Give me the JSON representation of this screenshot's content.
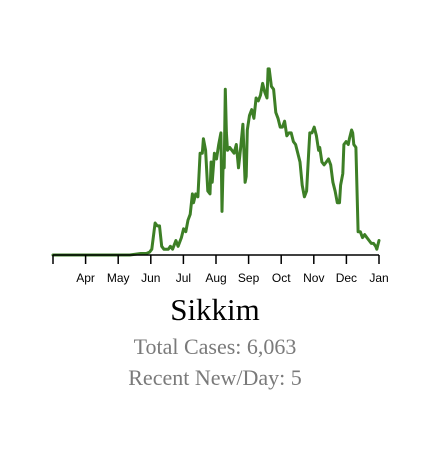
{
  "chart_data": {
    "type": "line",
    "title": "Sikkim",
    "x_tick_labels": [
      "Apr",
      "May",
      "Jun",
      "Jul",
      "Aug",
      "Sep",
      "Oct",
      "Nov",
      "Dec",
      "Jan"
    ],
    "x_range": [
      "2020-03",
      "2021-01"
    ],
    "y_range": [
      0,
      65
    ],
    "grid": false,
    "legend": "none",
    "line_color": "#3d7f26",
    "axis_color": "#000000",
    "series": [
      {
        "values": [
          [
            0,
            0
          ],
          [
            60,
            0
          ],
          [
            70,
            0
          ],
          [
            80,
            0.5
          ],
          [
            85,
            0.5
          ],
          [
            88,
            1
          ],
          [
            90,
            2
          ],
          [
            93,
            11
          ],
          [
            95,
            10
          ],
          [
            97,
            10
          ],
          [
            99,
            3
          ],
          [
            101,
            2
          ],
          [
            103,
            2
          ],
          [
            105,
            2
          ],
          [
            107,
            3
          ],
          [
            109,
            2
          ],
          [
            112,
            5
          ],
          [
            114,
            3
          ],
          [
            117,
            6
          ],
          [
            119,
            9
          ],
          [
            121,
            8
          ],
          [
            123,
            12
          ],
          [
            125,
            14
          ],
          [
            127,
            21
          ],
          [
            128,
            18
          ],
          [
            130,
            21
          ],
          [
            132,
            20
          ],
          [
            134,
            35
          ],
          [
            136,
            35
          ],
          [
            137,
            40
          ],
          [
            139,
            36
          ],
          [
            141,
            22
          ],
          [
            143,
            21
          ],
          [
            144,
            32
          ],
          [
            145,
            25
          ],
          [
            147,
            35
          ],
          [
            149,
            33
          ],
          [
            151,
            38
          ],
          [
            153,
            42
          ],
          [
            154,
            15
          ],
          [
            155,
            31
          ],
          [
            156,
            30
          ],
          [
            157,
            57
          ],
          [
            158,
            42
          ],
          [
            159,
            36
          ],
          [
            161,
            37
          ],
          [
            163,
            36
          ],
          [
            165,
            35
          ],
          [
            167,
            38
          ],
          [
            169,
            30
          ],
          [
            171,
            37
          ],
          [
            173,
            45
          ],
          [
            175,
            25
          ],
          [
            176,
            27
          ],
          [
            177,
            43
          ],
          [
            179,
            48
          ],
          [
            181,
            50
          ],
          [
            183,
            47
          ],
          [
            185,
            54
          ],
          [
            187,
            53
          ],
          [
            189,
            55
          ],
          [
            191,
            59
          ],
          [
            193,
            56
          ],
          [
            195,
            54
          ],
          [
            196,
            64
          ],
          [
            197,
            64
          ],
          [
            199,
            58
          ],
          [
            201,
            57
          ],
          [
            203,
            49
          ],
          [
            205,
            47
          ],
          [
            207,
            44
          ],
          [
            209,
            44
          ],
          [
            211,
            46
          ],
          [
            213,
            41
          ],
          [
            215,
            42
          ],
          [
            217,
            42
          ],
          [
            219,
            39
          ],
          [
            221,
            38
          ],
          [
            223,
            35
          ],
          [
            225,
            32
          ],
          [
            227,
            24
          ],
          [
            229,
            20
          ],
          [
            231,
            22
          ],
          [
            233,
            36
          ],
          [
            234,
            42
          ],
          [
            236,
            42
          ],
          [
            238,
            44
          ],
          [
            240,
            41
          ],
          [
            242,
            36
          ],
          [
            243,
            37
          ],
          [
            245,
            32
          ],
          [
            247,
            31
          ],
          [
            249,
            32
          ],
          [
            251,
            33
          ],
          [
            253,
            31
          ],
          [
            255,
            25
          ],
          [
            257,
            22
          ],
          [
            259,
            18
          ],
          [
            261,
            18
          ],
          [
            262,
            24
          ],
          [
            264,
            28
          ],
          [
            265,
            38
          ],
          [
            267,
            39
          ],
          [
            269,
            38
          ],
          [
            270,
            40
          ],
          [
            272,
            43
          ],
          [
            273,
            42
          ],
          [
            274,
            38
          ],
          [
            276,
            37
          ],
          [
            278,
            8
          ],
          [
            280,
            8
          ],
          [
            282,
            6
          ],
          [
            284,
            7
          ],
          [
            286,
            6
          ],
          [
            288,
            5
          ],
          [
            290,
            4
          ],
          [
            292,
            4
          ],
          [
            294,
            3
          ],
          [
            295,
            2
          ],
          [
            297,
            5
          ]
        ]
      }
    ]
  },
  "stats": {
    "total_cases": "Total Cases: 6,063",
    "recent_new_per_day": "Recent New/Day: 5"
  }
}
